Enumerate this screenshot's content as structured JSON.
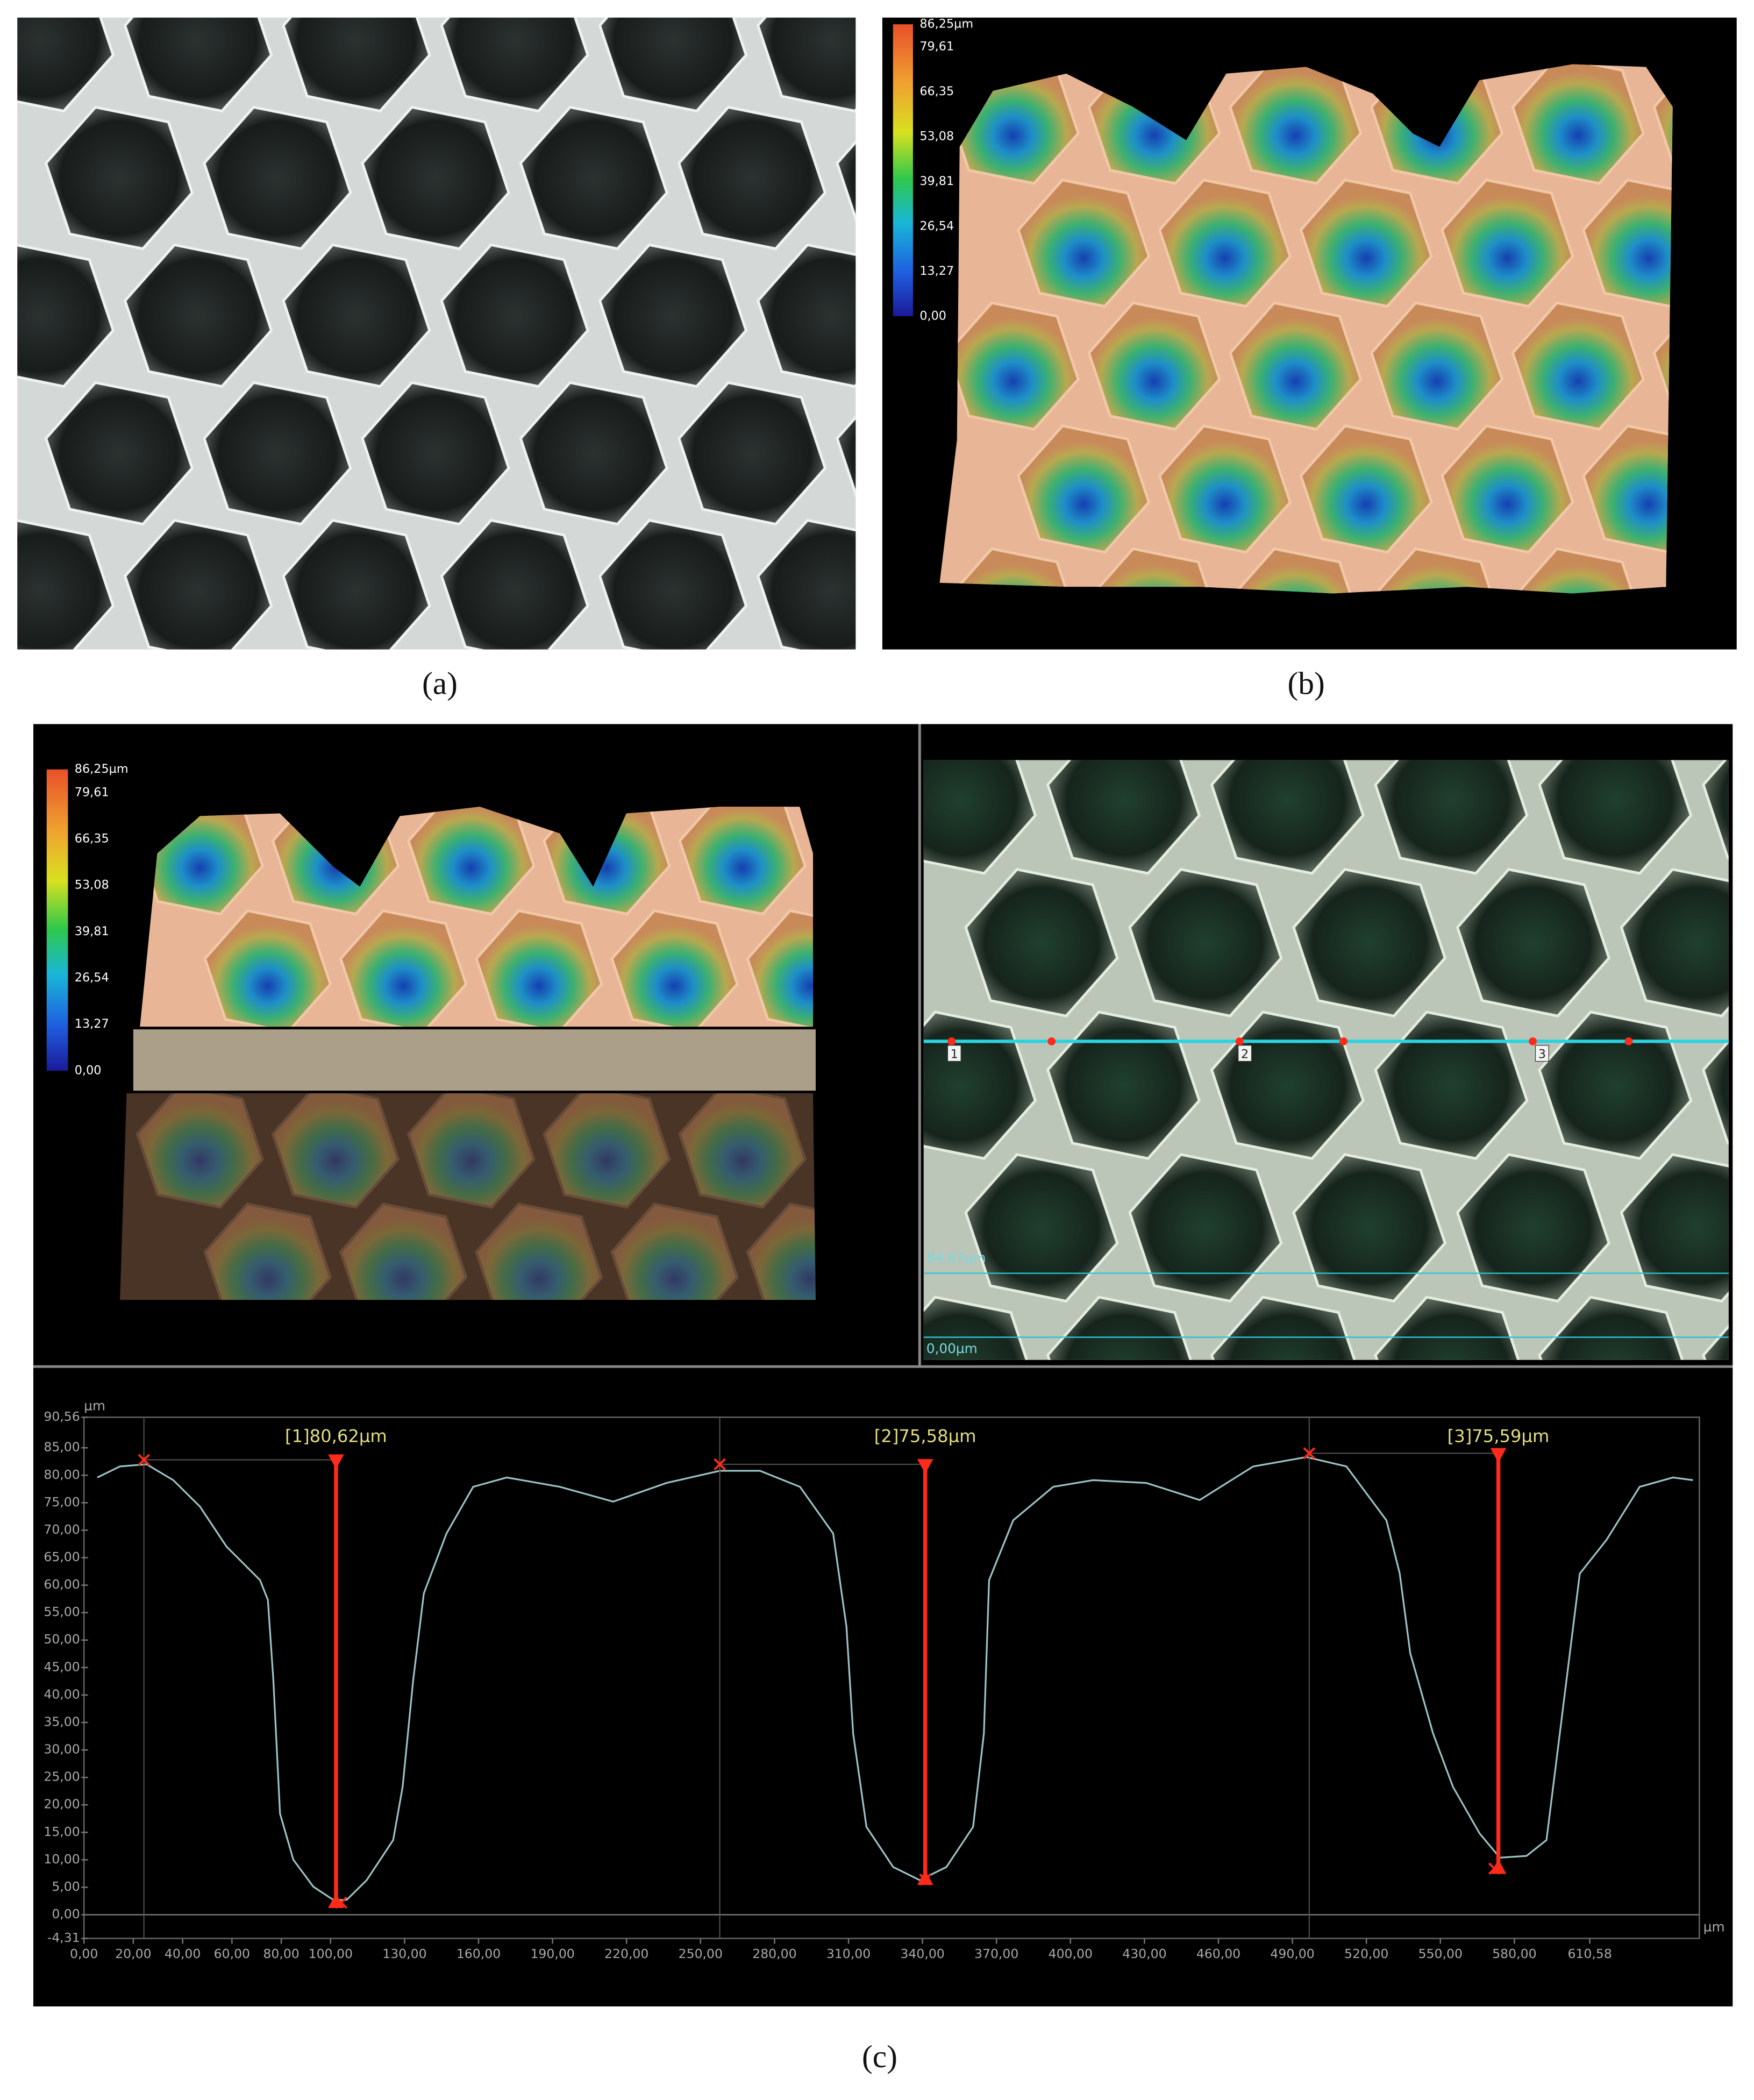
{
  "panels": {
    "a": "(a)",
    "b": "(b)",
    "c": "(c)"
  },
  "colorbar": {
    "lim": [
      0,
      86.25
    ],
    "ticks": [
      {
        "value": 86.25,
        "label": "86,25µm"
      },
      {
        "value": 79.61,
        "label": "79,61"
      },
      {
        "value": 66.35,
        "label": "66,35"
      },
      {
        "value": 53.08,
        "label": "53,08"
      },
      {
        "value": 39.81,
        "label": "39,81"
      },
      {
        "value": 26.54,
        "label": "26,54"
      },
      {
        "value": 13.27,
        "label": "13,27"
      },
      {
        "value": 0,
        "label": "0,00"
      }
    ]
  },
  "overlay": {
    "markers": [
      "1",
      "2",
      "3"
    ],
    "scale_top": "84,67µm",
    "scale_bottom": "0,00µm"
  },
  "chart_data": {
    "type": "line",
    "y_unit": "µm",
    "x_unit": "µm",
    "color": "#9cc3c6",
    "xlim": [
      0,
      655
    ],
    "ylim": [
      -4.31,
      90.56
    ],
    "xticks": [
      {
        "value": 0,
        "label": "0,00"
      },
      {
        "value": 20,
        "label": "20,00"
      },
      {
        "value": 40,
        "label": "40,00"
      },
      {
        "value": 60,
        "label": "60,00"
      },
      {
        "value": 80,
        "label": "80,00"
      },
      {
        "value": 100,
        "label": "100,00"
      },
      {
        "value": 130,
        "label": "130,00"
      },
      {
        "value": 160,
        "label": "160,00"
      },
      {
        "value": 190,
        "label": "190,00"
      },
      {
        "value": 220,
        "label": "220,00"
      },
      {
        "value": 250,
        "label": "250,00"
      },
      {
        "value": 280,
        "label": "280,00"
      },
      {
        "value": 310,
        "label": "310,00"
      },
      {
        "value": 340,
        "label": "340,00"
      },
      {
        "value": 370,
        "label": "370,00"
      },
      {
        "value": 400,
        "label": "400,00"
      },
      {
        "value": 430,
        "label": "430,00"
      },
      {
        "value": 460,
        "label": "460,00"
      },
      {
        "value": 490,
        "label": "490,00"
      },
      {
        "value": 520,
        "label": "520,00"
      },
      {
        "value": 550,
        "label": "550,00"
      },
      {
        "value": 580,
        "label": "580,00"
      },
      {
        "value": 610.58,
        "label": "610,58"
      }
    ],
    "yticks": [
      {
        "value": -4.31,
        "label": "-4,31"
      },
      {
        "value": 0,
        "label": "0,00"
      },
      {
        "value": 5,
        "label": "5,00"
      },
      {
        "value": 10,
        "label": "10,00"
      },
      {
        "value": 15,
        "label": "15,00"
      },
      {
        "value": 20,
        "label": "20,00"
      },
      {
        "value": 25,
        "label": "25,00"
      },
      {
        "value": 30,
        "label": "30,00"
      },
      {
        "value": 35,
        "label": "35,00"
      },
      {
        "value": 40,
        "label": "40,00"
      },
      {
        "value": 45,
        "label": "45,00"
      },
      {
        "value": 50,
        "label": "50,00"
      },
      {
        "value": 55,
        "label": "55,00"
      },
      {
        "value": 60,
        "label": "60,00"
      },
      {
        "value": 65,
        "label": "65,00"
      },
      {
        "value": 70,
        "label": "70,00"
      },
      {
        "value": 75,
        "label": "75,00"
      },
      {
        "value": 80,
        "label": "80,00"
      },
      {
        "value": 85,
        "label": "85,00"
      },
      {
        "value": 90.56,
        "label": "90,56"
      }
    ],
    "x": [
      5.4,
      14.6,
      25.4,
      36.2,
      47.0,
      57.8,
      71.4,
      74.6,
      76.8,
      79.5,
      84.9,
      93.0,
      101.1,
      106.5,
      114.6,
      125.4,
      129.2,
      133.5,
      137.8,
      147.0,
      157.8,
      171.4,
      193.0,
      214.6,
      236.2,
      257.8,
      274.1,
      290.3,
      303.8,
      309.2,
      311.9,
      317.3,
      328.1,
      338.9,
      349.7,
      360.5,
      364.9,
      367.0,
      376.8,
      393.0,
      409.2,
      430.8,
      452.4,
      474.1,
      495.7,
      511.9,
      528.1,
      533.5,
      537.8,
      547.0,
      555.1,
      565.9,
      574.1,
      584.9,
      593.0,
      601.1,
      606.5,
      617.3,
      630.8,
      644.3,
      652.4
    ],
    "values": [
      79.6,
      81.6,
      82.0,
      79.1,
      74.3,
      67.0,
      60.9,
      57.3,
      42.7,
      18.4,
      10.0,
      5.1,
      2.7,
      2.7,
      6.3,
      13.6,
      23.3,
      42.7,
      58.5,
      69.4,
      77.9,
      79.6,
      77.9,
      75.2,
      78.6,
      80.8,
      80.8,
      77.9,
      69.4,
      52.4,
      33.0,
      16.0,
      8.7,
      6.3,
      8.7,
      16.0,
      33.0,
      60.9,
      71.8,
      77.9,
      79.1,
      78.6,
      75.5,
      81.6,
      83.3,
      81.6,
      71.8,
      62.1,
      47.6,
      33.0,
      23.3,
      14.8,
      10.4,
      10.7,
      13.6,
      42.7,
      62.1,
      68.2,
      77.9,
      79.6,
      79.1
    ],
    "measurements": [
      {
        "label": "[1]80,62µm",
        "value": 80.62,
        "x": 102.2,
        "peak_x": 24.3,
        "peak_y": 82.8,
        "valley_x": 104.3,
        "valley_y": 2.2
      },
      {
        "label": "[2]75,58µm",
        "value": 75.58,
        "x": 341.1,
        "peak_x": 257.8,
        "peak_y": 82.0,
        "valley_x": 341.1,
        "valley_y": 6.4
      },
      {
        "label": "[3]75,59µm",
        "value": 75.59,
        "x": 573.5,
        "peak_x": 496.8,
        "peak_y": 84.0,
        "valley_x": 571.9,
        "valley_y": 8.4
      }
    ],
    "marker_color": "#ff2a1a",
    "label_color": "#e4df7c"
  }
}
